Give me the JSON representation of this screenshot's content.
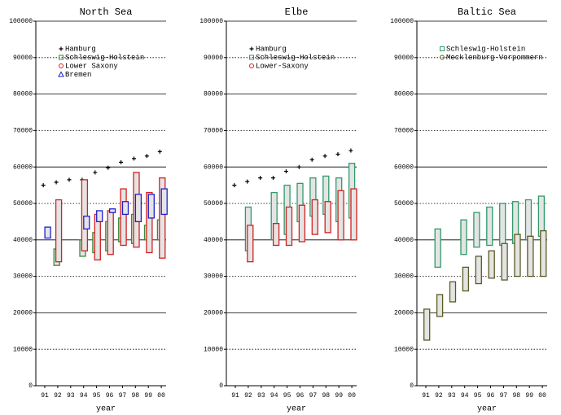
{
  "chart_data": [
    {
      "type": "range",
      "title": "North Sea",
      "xlabel": "year",
      "categories": [
        "91",
        "92",
        "93",
        "94",
        "95",
        "96",
        "97",
        "98",
        "99",
        "00"
      ],
      "ylim": [
        0,
        100000
      ],
      "yticks": [
        0,
        10000,
        20000,
        30000,
        40000,
        50000,
        60000,
        70000,
        80000,
        90000,
        100000
      ],
      "grid": true,
      "series": [
        {
          "name": "Hamburg",
          "color": "#000000",
          "marker": "plus",
          "values": [
            55000,
            55800,
            56500,
            56500,
            58500,
            59800,
            61300,
            62300,
            63000,
            64200
          ]
        },
        {
          "name": "Schleswig-Holstein",
          "color": "#3a8a3a",
          "marker": "square",
          "low": [
            null,
            33000,
            null,
            35500,
            36500,
            37000,
            39500,
            39000,
            40000,
            40000
          ],
          "high": [
            null,
            37500,
            null,
            40000,
            42000,
            45000,
            46000,
            47000,
            44000,
            45500
          ]
        },
        {
          "name": "Lower Saxony",
          "color": "#d42020",
          "marker": "circle",
          "low": [
            null,
            34000,
            null,
            37000,
            34500,
            36000,
            38500,
            38000,
            36500,
            35000
          ],
          "high": [
            null,
            51000,
            null,
            56500,
            47000,
            48000,
            54000,
            58500,
            53000,
            57000
          ]
        },
        {
          "name": "Bremen",
          "color": "#2020cc",
          "marker": "triangle",
          "low": [
            40500,
            null,
            null,
            43000,
            45000,
            47500,
            47000,
            45000,
            46000,
            47000
          ],
          "high": [
            43500,
            null,
            null,
            46500,
            48000,
            48500,
            50500,
            52500,
            52500,
            54000
          ]
        }
      ]
    },
    {
      "type": "range",
      "title": "Elbe",
      "xlabel": "year",
      "categories": [
        "91",
        "92",
        "93",
        "94",
        "95",
        "96",
        "97",
        "98",
        "99",
        "00"
      ],
      "ylim": [
        0,
        100000
      ],
      "yticks": [
        0,
        10000,
        20000,
        30000,
        40000,
        50000,
        60000,
        70000,
        80000,
        90000,
        100000
      ],
      "grid": true,
      "series": [
        {
          "name": "Hamburg",
          "color": "#000000",
          "marker": "plus",
          "values": [
            55000,
            56000,
            57000,
            57000,
            58800,
            60000,
            62000,
            63000,
            63500,
            64500
          ]
        },
        {
          "name": "Schleswig-Holstein",
          "color": "#2e9a6a",
          "marker": "square",
          "low": [
            null,
            37000,
            null,
            40000,
            41500,
            45000,
            46500,
            47000,
            45000,
            46000
          ],
          "high": [
            null,
            49000,
            null,
            53000,
            55000,
            55500,
            57000,
            57500,
            57000,
            61000
          ]
        },
        {
          "name": "Lower-Saxony",
          "color": "#d42020",
          "marker": "circle",
          "low": [
            null,
            34000,
            null,
            38500,
            38500,
            39500,
            41500,
            42000,
            40000,
            40000
          ],
          "high": [
            null,
            44000,
            null,
            44500,
            49000,
            49500,
            51000,
            50500,
            53500,
            54000
          ]
        }
      ]
    },
    {
      "type": "range",
      "title": "Baltic Sea",
      "xlabel": "year",
      "categories": [
        "91",
        "92",
        "93",
        "94",
        "95",
        "96",
        "97",
        "98",
        "99",
        "00"
      ],
      "ylim": [
        0,
        100000
      ],
      "yticks": [
        0,
        10000,
        20000,
        30000,
        40000,
        50000,
        60000,
        70000,
        80000,
        90000,
        100000
      ],
      "grid": true,
      "series": [
        {
          "name": "Schleswig-Holstein",
          "color": "#2e9a6a",
          "marker": "square",
          "low": [
            null,
            32500,
            null,
            36000,
            38000,
            38500,
            38500,
            39000,
            40000,
            41000
          ],
          "high": [
            null,
            43000,
            null,
            45500,
            47500,
            49000,
            50000,
            50500,
            51000,
            52000
          ]
        },
        {
          "name": "Mecklenburg-Vorpommern",
          "color": "#5a5a20",
          "marker": "circle",
          "low": [
            12500,
            19000,
            23000,
            26000,
            28000,
            29500,
            29000,
            30000,
            30000,
            30000
          ],
          "high": [
            21000,
            25000,
            28500,
            32500,
            35500,
            37000,
            39000,
            41500,
            41000,
            42500
          ]
        }
      ]
    }
  ]
}
